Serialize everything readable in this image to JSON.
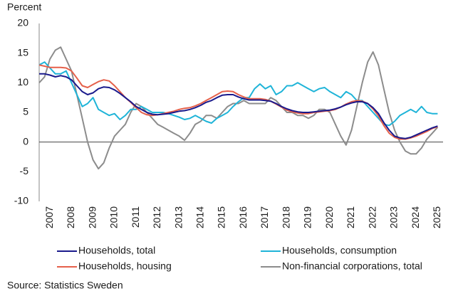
{
  "chart_data": {
    "type": "line",
    "y_label": "Percent",
    "source": "Source: Statistics Sweden",
    "xlim": [
      2007,
      2025.75
    ],
    "xticks": [
      {
        "value": 2007.5,
        "label": "2007"
      },
      {
        "value": 2008.5,
        "label": "2008"
      },
      {
        "value": 2009.5,
        "label": "2009"
      },
      {
        "value": 2010.5,
        "label": "2010"
      },
      {
        "value": 2011.5,
        "label": "2011"
      },
      {
        "value": 2012.5,
        "label": "2012"
      },
      {
        "value": 2013.5,
        "label": "2013"
      },
      {
        "value": 2014.5,
        "label": "2014"
      },
      {
        "value": 2015.5,
        "label": "2015"
      },
      {
        "value": 2016.5,
        "label": "2016"
      },
      {
        "value": 2017.5,
        "label": "2017"
      },
      {
        "value": 2018.5,
        "label": "2018"
      },
      {
        "value": 2019.5,
        "label": "2019"
      },
      {
        "value": 2020.5,
        "label": "2020"
      },
      {
        "value": 2021.5,
        "label": "2021"
      },
      {
        "value": 2022.5,
        "label": "2022"
      },
      {
        "value": 2023.5,
        "label": "2023"
      },
      {
        "value": 2024.5,
        "label": "2024"
      },
      {
        "value": 2025.5,
        "label": "2025"
      }
    ],
    "ylim": [
      -10,
      20
    ],
    "yticks": [
      -10,
      -5,
      0,
      5,
      10,
      15,
      20
    ],
    "x": [
      2007,
      2007.25,
      2007.5,
      2007.75,
      2008,
      2008.25,
      2008.5,
      2008.75,
      2009,
      2009.25,
      2009.5,
      2009.75,
      2010,
      2010.25,
      2010.5,
      2010.75,
      2011,
      2011.25,
      2011.5,
      2011.75,
      2012,
      2012.25,
      2012.5,
      2012.75,
      2013,
      2013.25,
      2013.5,
      2013.75,
      2014,
      2014.25,
      2014.5,
      2014.75,
      2015,
      2015.25,
      2015.5,
      2015.75,
      2016,
      2016.25,
      2016.5,
      2016.75,
      2017,
      2017.25,
      2017.5,
      2017.75,
      2018,
      2018.25,
      2018.5,
      2018.75,
      2019,
      2019.25,
      2019.5,
      2019.75,
      2020,
      2020.25,
      2020.5,
      2020.75,
      2021,
      2021.25,
      2021.5,
      2021.75,
      2022,
      2022.25,
      2022.5,
      2022.75,
      2023,
      2023.25,
      2023.5,
      2023.75,
      2024,
      2024.25,
      2024.5,
      2024.75,
      2025,
      2025.25,
      2025.5
    ],
    "series": [
      {
        "name": "Non-financial corporations, total",
        "color": "#8c8c8c",
        "values": [
          10,
          11,
          14,
          15.5,
          16,
          14,
          12,
          8,
          4,
          0,
          -3,
          -4.5,
          -3.5,
          -1,
          1,
          2,
          3,
          5,
          6.5,
          6,
          5,
          4,
          3,
          2.5,
          2,
          1.5,
          1,
          0.3,
          1.5,
          3,
          3.5,
          4.5,
          4.5,
          4,
          5,
          6,
          6.5,
          6.5,
          7,
          6.5,
          6.5,
          6.5,
          6.5,
          7.5,
          7,
          6,
          5,
          5,
          4.5,
          4.5,
          4,
          4.5,
          5.5,
          5.5,
          5,
          3,
          1,
          -0.5,
          2,
          6,
          10,
          13.5,
          15.2,
          13,
          9,
          5,
          2,
          0,
          -1.5,
          -2,
          -2,
          -1,
          0.5,
          1.5,
          2.5
        ]
      },
      {
        "name": "Households, consumption",
        "color": "#1fb4d8",
        "values": [
          13,
          13.5,
          12.5,
          11.5,
          11.5,
          12,
          10,
          8,
          6,
          6.5,
          7.5,
          5.5,
          5,
          4.5,
          4.8,
          3.8,
          4.5,
          5.5,
          5.5,
          6,
          5.5,
          5,
          5,
          5,
          4.8,
          4.5,
          4.2,
          3.8,
          4,
          4.5,
          4,
          3.5,
          3.2,
          4,
          4.5,
          5,
          6,
          6.8,
          7.5,
          7.5,
          9,
          9.8,
          9,
          9.5,
          8,
          8.5,
          9.5,
          9.5,
          10,
          9.5,
          9,
          8.5,
          9,
          9.2,
          8.5,
          8,
          7.5,
          8.5,
          8,
          7,
          7,
          6,
          5,
          4,
          3,
          2.8,
          3.5,
          4.5,
          5,
          5.5,
          5,
          6,
          5,
          4.8,
          4.8
        ]
      },
      {
        "name": "Households, housing",
        "color": "#e5604a",
        "values": [
          13,
          12.8,
          12.6,
          12.6,
          12.6,
          12.5,
          12,
          10.8,
          9.5,
          9.2,
          9.7,
          10.2,
          10.5,
          10.3,
          9.5,
          8.5,
          7.5,
          6.7,
          5.8,
          5,
          4.6,
          4.5,
          4.6,
          4.8,
          5,
          5.2,
          5.5,
          5.7,
          5.8,
          6.1,
          6.5,
          7,
          7.5,
          8,
          8.5,
          8.6,
          8.5,
          8,
          7.6,
          7.3,
          7.3,
          7.3,
          7.2,
          6.9,
          6.4,
          5.9,
          5.4,
          5.1,
          4.9,
          4.8,
          4.8,
          5,
          5.1,
          5.2,
          5.3,
          5.5,
          5.9,
          6.4,
          6.8,
          7,
          6.9,
          6.5,
          5.6,
          4.4,
          2.8,
          1.5,
          0.8,
          0.5,
          0.5,
          0.7,
          1,
          1.4,
          1.8,
          2.3,
          2.6
        ]
      },
      {
        "name": "Households, total",
        "color": "#1a1a8c",
        "values": [
          11.5,
          11.5,
          11.3,
          11,
          11.2,
          11,
          10.5,
          9.5,
          8.5,
          8,
          8.3,
          9,
          9.3,
          9.2,
          8.8,
          8.2,
          7.5,
          6.8,
          6,
          5.5,
          5,
          4.7,
          4.6,
          4.7,
          4.8,
          5,
          5.2,
          5.3,
          5.5,
          5.8,
          6.2,
          6.7,
          7,
          7.5,
          7.9,
          8,
          8,
          7.6,
          7.3,
          7.1,
          7.1,
          7.1,
          7,
          6.9,
          6.5,
          6,
          5.6,
          5.3,
          5.1,
          5,
          5,
          5.1,
          5.2,
          5.3,
          5.4,
          5.6,
          5.9,
          6.3,
          6.6,
          6.8,
          6.8,
          6.5,
          5.8,
          4.8,
          3.3,
          2,
          1,
          0.7,
          0.6,
          0.8,
          1.2,
          1.6,
          2,
          2.4,
          2.7
        ]
      }
    ]
  }
}
